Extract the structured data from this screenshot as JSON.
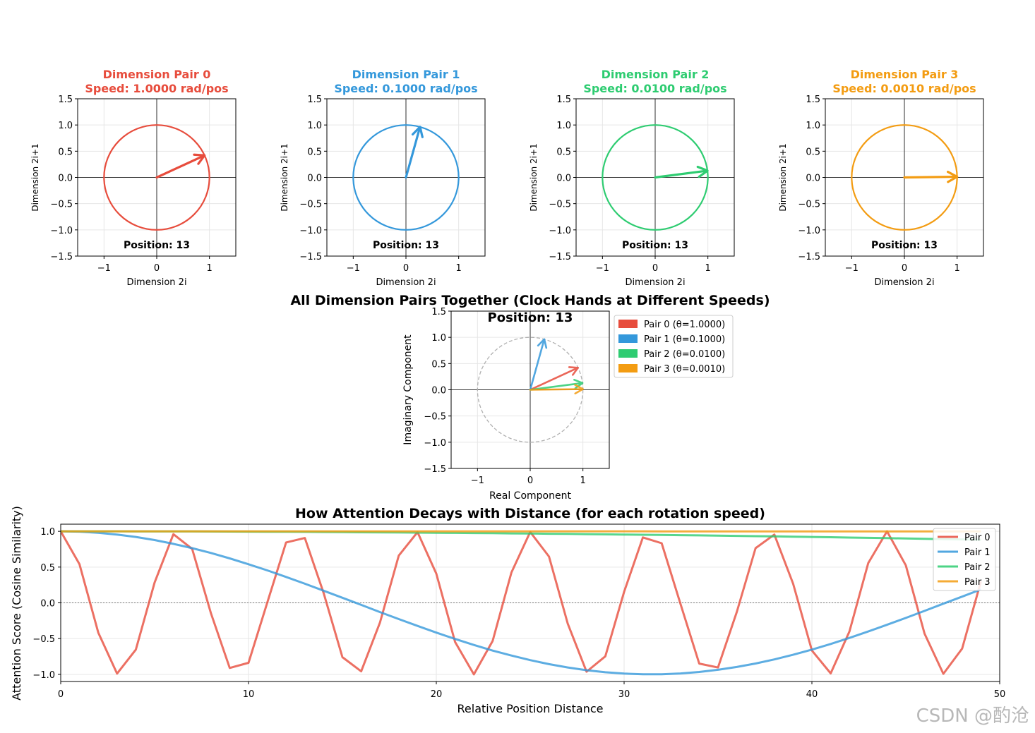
{
  "colors": {
    "pair0": "#e74c3c",
    "pair1": "#3498db",
    "pair2": "#2ecc71",
    "pair3": "#f39c12",
    "axis": "#000000",
    "grid": "#e6e6e6",
    "circle_dashed": "#b0b0b0"
  },
  "watermark": "CSDN @酌沧",
  "chart_data": [
    {
      "type": "scatter",
      "id": "pair0",
      "title": "Dimension Pair 0",
      "subtitle": "Speed: 1.0000 rad/pos",
      "xlabel": "Dimension 2i",
      "ylabel": "Dimension 2i+1",
      "xlim": [
        -1.5,
        1.5
      ],
      "ylim": [
        -1.5,
        1.5
      ],
      "xticks": [
        "−1",
        "0",
        "1"
      ],
      "yticks": [
        "1.5",
        "1.0",
        "0.5",
        "0.0",
        "−0.5",
        "−1.0",
        "−1.5"
      ],
      "position_label": "Position: 13",
      "theta": 1.0,
      "position": 13,
      "vector": [
        0.907,
        0.42
      ]
    },
    {
      "type": "scatter",
      "id": "pair1",
      "title": "Dimension Pair 1",
      "subtitle": "Speed: 0.1000 rad/pos",
      "xlabel": "Dimension 2i",
      "ylabel": "Dimension 2i+1",
      "xlim": [
        -1.5,
        1.5
      ],
      "ylim": [
        -1.5,
        1.5
      ],
      "xticks": [
        "−1",
        "0",
        "1"
      ],
      "yticks": [
        "1.5",
        "1.0",
        "0.5",
        "0.0",
        "−0.5",
        "−1.0",
        "−1.5"
      ],
      "position_label": "Position: 13",
      "theta": 0.1,
      "position": 13,
      "vector": [
        0.267,
        0.964
      ]
    },
    {
      "type": "scatter",
      "id": "pair2",
      "title": "Dimension Pair 2",
      "subtitle": "Speed: 0.0100 rad/pos",
      "xlabel": "Dimension 2i",
      "ylabel": "Dimension 2i+1",
      "xlim": [
        -1.5,
        1.5
      ],
      "ylim": [
        -1.5,
        1.5
      ],
      "xticks": [
        "−1",
        "0",
        "1"
      ],
      "yticks": [
        "1.5",
        "1.0",
        "0.5",
        "0.0",
        "−0.5",
        "−1.0",
        "−1.5"
      ],
      "position_label": "Position: 13",
      "theta": 0.01,
      "position": 13,
      "vector": [
        0.992,
        0.129
      ]
    },
    {
      "type": "scatter",
      "id": "pair3",
      "title": "Dimension Pair 3",
      "subtitle": "Speed: 0.0010 rad/pos",
      "xlabel": "Dimension 2i",
      "ylabel": "Dimension 2i+1",
      "xlim": [
        -1.5,
        1.5
      ],
      "ylim": [
        -1.5,
        1.5
      ],
      "xticks": [
        "−1",
        "0",
        "1"
      ],
      "yticks": [
        "1.5",
        "1.0",
        "0.5",
        "0.0",
        "−0.5",
        "−1.0",
        "−1.5"
      ],
      "position_label": "Position: 13",
      "theta": 0.001,
      "position": 13,
      "vector": [
        1.0,
        0.013
      ]
    },
    {
      "type": "scatter",
      "id": "combined",
      "title": "All Dimension Pairs Together (Clock Hands at Different Speeds)",
      "position_label": "Position: 13",
      "xlabel": "Real Component",
      "ylabel": "Imaginary Component",
      "xlim": [
        -1.5,
        1.5
      ],
      "ylim": [
        -1.5,
        1.5
      ],
      "xticks": [
        "−1",
        "0",
        "1"
      ],
      "yticks": [
        "1.5",
        "1.0",
        "0.5",
        "0.0",
        "−0.5",
        "−1.0",
        "−1.5"
      ],
      "legend_position": "outside-right-top",
      "series": [
        {
          "name": "Pair 0 (θ=1.0000)",
          "vector": [
            0.907,
            0.42
          ]
        },
        {
          "name": "Pair 1 (θ=0.1000)",
          "vector": [
            0.267,
            0.964
          ]
        },
        {
          "name": "Pair 2 (θ=0.0100)",
          "vector": [
            0.992,
            0.129
          ]
        },
        {
          "name": "Pair 3 (θ=0.0010)",
          "vector": [
            1.0,
            0.013
          ]
        }
      ]
    },
    {
      "type": "line",
      "id": "decay",
      "title": "How Attention Decays with Distance (for each rotation speed)",
      "xlabel": "Relative Position Distance",
      "ylabel": "Attention Score (Cosine Similarity)",
      "xlim": [
        0,
        50
      ],
      "ylim": [
        -1.1,
        1.1
      ],
      "xticks": [
        "0",
        "10",
        "20",
        "30",
        "40",
        "50"
      ],
      "yticks": [
        "1.0",
        "0.5",
        "0.0",
        "−0.5",
        "−1.0"
      ],
      "legend_position": "top-right",
      "x": [
        0,
        1,
        2,
        3,
        4,
        5,
        6,
        7,
        8,
        9,
        10,
        11,
        12,
        13,
        14,
        15,
        16,
        17,
        18,
        19,
        20,
        21,
        22,
        23,
        24,
        25,
        26,
        27,
        28,
        29,
        30,
        31,
        32,
        33,
        34,
        35,
        36,
        37,
        38,
        39,
        40,
        41,
        42,
        43,
        44,
        45,
        46,
        47,
        48,
        49
      ],
      "series": [
        {
          "name": "Pair 0",
          "theta": 1.0,
          "values": [
            1.0,
            0.54,
            -0.416,
            -0.99,
            -0.654,
            0.284,
            0.96,
            0.754,
            -0.146,
            -0.911,
            -0.839,
            0.004,
            0.844,
            0.907,
            0.137,
            -0.76,
            -0.958,
            -0.275,
            0.66,
            0.989,
            0.408,
            -0.548,
            -1.0,
            -0.533,
            0.424,
            0.991,
            0.647,
            -0.292,
            -0.963,
            -0.748,
            0.154,
            0.915,
            0.834,
            -0.013,
            -0.849,
            -0.904,
            -0.128,
            0.765,
            0.955,
            0.267,
            -0.667,
            -0.987,
            -0.4,
            0.556,
            1.0,
            0.525,
            -0.432,
            -0.992,
            -0.64,
            0.3
          ]
        },
        {
          "name": "Pair 1",
          "theta": 0.1,
          "values": [
            1.0,
            0.995,
            0.98,
            0.955,
            0.921,
            0.878,
            0.825,
            0.765,
            0.697,
            0.622,
            0.54,
            0.454,
            0.362,
            0.267,
            0.17,
            0.071,
            -0.029,
            -0.129,
            -0.227,
            -0.323,
            -0.416,
            -0.505,
            -0.589,
            -0.668,
            -0.737,
            -0.801,
            -0.857,
            -0.904,
            -0.942,
            -0.971,
            -0.99,
            -0.999,
            -0.998,
            -0.988,
            -0.967,
            -0.936,
            -0.897,
            -0.848,
            -0.791,
            -0.726,
            -0.654,
            -0.575,
            -0.49,
            -0.401,
            -0.307,
            -0.211,
            -0.112,
            -0.012,
            0.087,
            0.187
          ]
        },
        {
          "name": "Pair 2",
          "theta": 0.01,
          "values": [
            1.0,
            1.0,
            1.0,
            1.0,
            0.999,
            0.999,
            0.998,
            0.998,
            0.997,
            0.996,
            0.995,
            0.994,
            0.993,
            0.992,
            0.99,
            0.989,
            0.987,
            0.986,
            0.984,
            0.982,
            0.98,
            0.978,
            0.976,
            0.974,
            0.971,
            0.969,
            0.966,
            0.964,
            0.961,
            0.958,
            0.955,
            0.952,
            0.949,
            0.946,
            0.943,
            0.939,
            0.936,
            0.932,
            0.929,
            0.925,
            0.921,
            0.917,
            0.913,
            0.909,
            0.905,
            0.9,
            0.896,
            0.891,
            0.887,
            0.882
          ]
        },
        {
          "name": "Pair 3",
          "theta": 0.001,
          "values": [
            1.0,
            1.0,
            1.0,
            1.0,
            1.0,
            1.0,
            1.0,
            1.0,
            1.0,
            1.0,
            1.0,
            1.0,
            1.0,
            1.0,
            1.0,
            1.0,
            1.0,
            1.0,
            1.0,
            1.0,
            1.0,
            1.0,
            1.0,
            1.0,
            1.0,
            1.0,
            1.0,
            1.0,
            1.0,
            1.0,
            1.0,
            1.0,
            0.999,
            0.999,
            0.999,
            0.999,
            0.999,
            0.999,
            0.999,
            0.999,
            0.999,
            0.999,
            0.999,
            0.999,
            0.999,
            0.999,
            0.999,
            0.999,
            0.999,
            0.999
          ]
        }
      ]
    }
  ]
}
